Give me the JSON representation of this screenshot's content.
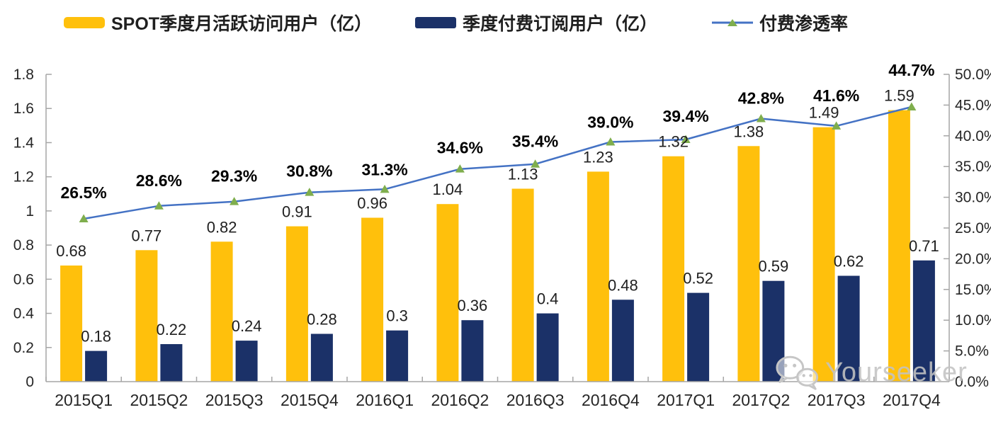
{
  "legend": {
    "items": [
      {
        "label": "SPOT季度月活跃访问用户（亿）",
        "swatch_color": "#FFC00C"
      },
      {
        "label": "季度付费订阅用户（亿）",
        "swatch_color": "#1B3168"
      },
      {
        "label": "付费渗透率",
        "line_color": "#4472C4",
        "marker_color": "#7FAE4D"
      }
    ]
  },
  "watermark": {
    "text": "Yourseeker",
    "icon": "wechat-icon"
  },
  "colors": {
    "bar_mau": "#FFC00C",
    "bar_sub": "#1B3168",
    "line": "#4472C4",
    "marker": "#7FAE4D",
    "axis": "#A6A6A6",
    "watermark": "#C3C3C3"
  },
  "chart_data": {
    "type": "bar",
    "subtype": "combo-bar-line",
    "title": "",
    "xlabel": "",
    "ylabel_left": "",
    "ylabel_right": "",
    "grid": false,
    "legend_position": "top",
    "categories": [
      "2015Q1",
      "2015Q2",
      "2015Q3",
      "2015Q4",
      "2016Q1",
      "2016Q2",
      "2016Q3",
      "2016Q4",
      "2017Q1",
      "2017Q2",
      "2017Q3",
      "2017Q4"
    ],
    "series": [
      {
        "name": "SPOT季度月活跃访问用户（亿）",
        "type": "bar",
        "axis": "left",
        "color": "#FFC00C",
        "values": [
          0.68,
          0.77,
          0.82,
          0.91,
          0.96,
          1.04,
          1.13,
          1.23,
          1.32,
          1.38,
          1.49,
          1.59
        ],
        "labels": [
          "0.68",
          "0.77",
          "0.82",
          "0.91",
          "0.96",
          "1.04",
          "1.13",
          "1.23",
          "1.32",
          "1.38",
          "1.49",
          "1.59"
        ]
      },
      {
        "name": "季度付费订阅用户（亿）",
        "type": "bar",
        "axis": "left",
        "color": "#1B3168",
        "values": [
          0.18,
          0.22,
          0.24,
          0.28,
          0.3,
          0.36,
          0.4,
          0.48,
          0.52,
          0.59,
          0.62,
          0.71
        ],
        "labels": [
          "0.18",
          "0.22",
          "0.24",
          "0.28",
          "0.3",
          "0.36",
          "0.4",
          "0.48",
          "0.52",
          "0.59",
          "0.62",
          "0.71"
        ]
      },
      {
        "name": "付费渗透率",
        "type": "line",
        "axis": "right",
        "color": "#4472C4",
        "marker": "triangle-up",
        "marker_color": "#7FAE4D",
        "values": [
          26.5,
          28.6,
          29.3,
          30.8,
          31.3,
          34.6,
          35.4,
          39.0,
          39.4,
          42.8,
          41.6,
          44.7
        ],
        "labels": [
          "26.5%",
          "28.6%",
          "29.3%",
          "30.8%",
          "31.3%",
          "34.6%",
          "35.4%",
          "39.0%",
          "39.4%",
          "42.8%",
          "41.6%",
          "44.7%"
        ]
      }
    ],
    "left_axis": {
      "min": 0,
      "max": 1.8,
      "step": 0.2,
      "tick_labels": [
        "0",
        "0.2",
        "0.4",
        "0.6",
        "0.8",
        "1",
        "1.2",
        "1.4",
        "1.6",
        "1.8"
      ]
    },
    "right_axis": {
      "min": 0,
      "max": 50,
      "step": 5,
      "tick_labels": [
        "0.0%",
        "5.0%",
        "10.0%",
        "15.0%",
        "20.0%",
        "25.0%",
        "30.0%",
        "35.0%",
        "40.0%",
        "45.0%",
        "50.0%"
      ]
    }
  }
}
